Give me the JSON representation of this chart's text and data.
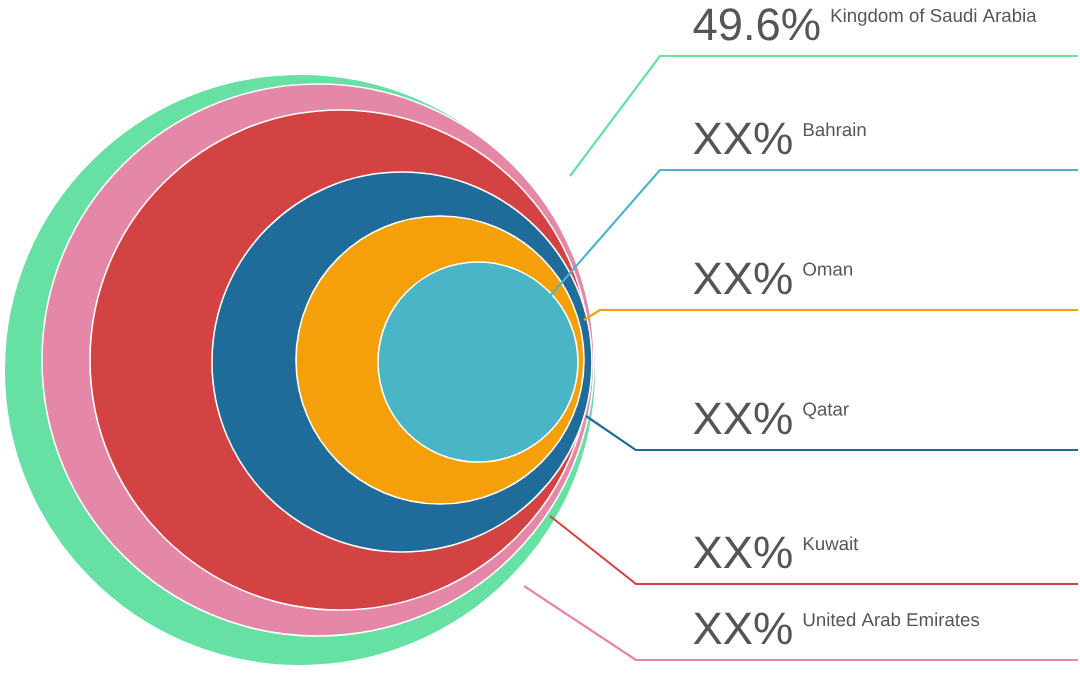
{
  "chart_data": {
    "type": "other",
    "categories": [
      "Kingdom of Saudi Arabia",
      "United Arab Emirates",
      "Kuwait",
      "Qatar",
      "Oman",
      "Bahrain"
    ],
    "values": [
      49.6,
      null,
      null,
      null,
      null,
      null
    ],
    "value_labels": [
      "49.6%",
      "XX%",
      "XX%",
      "XX%",
      "XX%",
      "XX%"
    ],
    "colors": [
      "#66e0a3",
      "#e587a6",
      "#d44343",
      "#1f6b9a",
      "#f5a00a",
      "#4bb5c8"
    ]
  }
}
